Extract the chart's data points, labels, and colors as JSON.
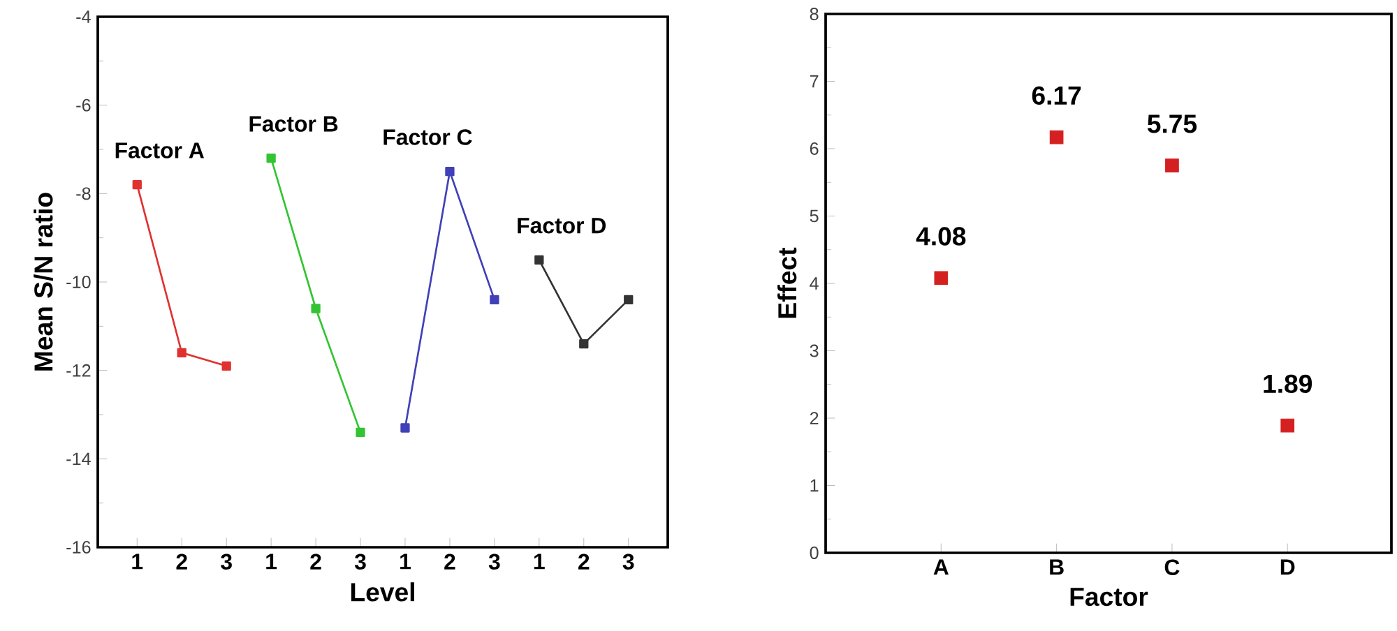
{
  "chart_data": [
    {
      "type": "line",
      "xlabel": "Level",
      "ylabel": "Mean S/N ratio",
      "categories": [
        "1",
        "2",
        "3",
        "1",
        "2",
        "3",
        "1",
        "2",
        "3",
        "1",
        "2",
        "3"
      ],
      "marker": "square",
      "ylim": [
        -16,
        -4
      ],
      "yticks": [
        -16,
        -14,
        -12,
        -10,
        -8,
        -6,
        -4
      ],
      "series": [
        {
          "name": "Factor A",
          "color": "#e03131",
          "values": [
            -7.8,
            -11.6,
            -11.9,
            null,
            null,
            null,
            null,
            null,
            null,
            null,
            null,
            null
          ]
        },
        {
          "name": "Factor B",
          "color": "#33c433",
          "values": [
            null,
            null,
            null,
            -7.2,
            -10.6,
            -13.4,
            null,
            null,
            null,
            null,
            null,
            null
          ]
        },
        {
          "name": "Factor C",
          "color": "#4040b8",
          "values": [
            null,
            null,
            null,
            null,
            null,
            null,
            -13.3,
            -7.5,
            -10.4,
            null,
            null,
            null
          ]
        },
        {
          "name": "Factor D",
          "color": "#333333",
          "values": [
            null,
            null,
            null,
            null,
            null,
            null,
            null,
            null,
            null,
            -9.5,
            -11.4,
            -10.4
          ]
        }
      ]
    },
    {
      "type": "scatter",
      "xlabel": "Factor",
      "ylabel": "Effect",
      "categories": [
        "A",
        "B",
        "C",
        "D"
      ],
      "values": [
        4.08,
        6.17,
        5.75,
        1.89
      ],
      "color": "#d42020",
      "marker": "square",
      "data_labels": true,
      "ylim": [
        0,
        8
      ],
      "yticks": [
        0,
        1,
        2,
        3,
        4,
        5,
        6,
        7,
        8
      ]
    }
  ]
}
